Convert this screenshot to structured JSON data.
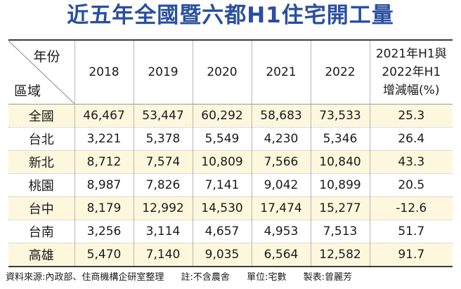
{
  "title": "近五年全國暨六都H1住宅開工量",
  "corner": {
    "column_header": "年份",
    "row_header": "區域"
  },
  "chart_data": {
    "type": "table",
    "columns": [
      "2018",
      "2019",
      "2020",
      "2021",
      "2022",
      "2021年H1與 2022年H1 增減幅(%)"
    ],
    "change_header_lines": [
      "2021年H1與",
      "2022年H1",
      "增減幅(%)"
    ],
    "rows": [
      {
        "region": "全國",
        "values": [
          "46,467",
          "53,447",
          "60,292",
          "58,683",
          "73,533"
        ],
        "change": "25.3"
      },
      {
        "region": "台北",
        "values": [
          "3,221",
          "5,378",
          "5,549",
          "4,230",
          "5,346"
        ],
        "change": "26.4"
      },
      {
        "region": "新北",
        "values": [
          "8,712",
          "7,574",
          "10,809",
          "7,566",
          "10,840"
        ],
        "change": "43.3"
      },
      {
        "region": "桃園",
        "values": [
          "8,987",
          "7,826",
          "7,141",
          "9,042",
          "10,899"
        ],
        "change": "20.5"
      },
      {
        "region": "台中",
        "values": [
          "8,179",
          "12,992",
          "14,530",
          "17,474",
          "15,277"
        ],
        "change": "-12.6"
      },
      {
        "region": "台南",
        "values": [
          "3,256",
          "3,114",
          "4,657",
          "4,953",
          "7,513"
        ],
        "change": "51.7"
      },
      {
        "region": "高雄",
        "values": [
          "5,470",
          "7,140",
          "9,035",
          "6,564",
          "12,582"
        ],
        "change": "91.7"
      }
    ]
  },
  "footer": {
    "source": "資料來源:內政部、住商機構企研室整理",
    "note": "註:不含農舍",
    "unit": "單位:宅數",
    "maker": "製表:曾麗芳"
  },
  "colors": {
    "title": "#2a4f9f",
    "stripe": "#fdf7dd",
    "rule": "#3a3a3a"
  }
}
